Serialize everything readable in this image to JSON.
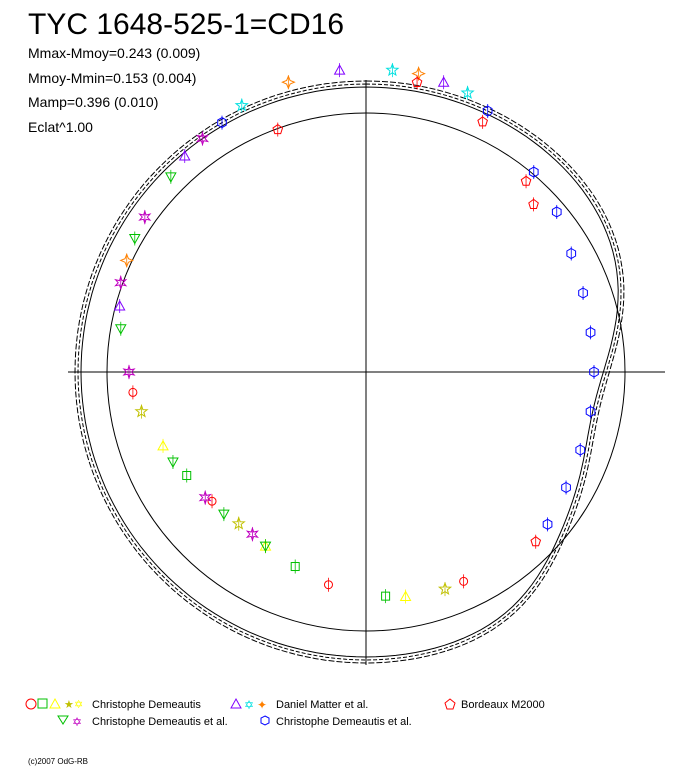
{
  "chart_data": {
    "type": "scatter",
    "plot": "polar light curve (phase as angle, magnitude as radius)",
    "title": "TYC 1648-525-1=CD16",
    "stats": [
      "Mmax-Mmoy=0.243 (0.009)",
      "Mmoy-Mmin=0.153 (0.004)",
      "Mamp=0.396 (0.010)",
      "Eclat^1.00"
    ],
    "mean_circle_magnitude_offset": 0.0,
    "series": [
      {
        "name": "Christophe Demeautis",
        "symbols": [
          "circle",
          "square",
          "triangle",
          "star"
        ],
        "colors": [
          "#ff0000",
          "#00c000",
          "#ffff00",
          "#c0c000"
        ],
        "points": [
          [
            -170,
            0.17
          ],
          [
            -160,
            0.2
          ],
          [
            -150,
            0.22
          ],
          [
            -140,
            0.23
          ],
          [
            -130,
            0.22
          ],
          [
            -120,
            0.2
          ],
          [
            -110,
            0.17
          ],
          [
            -100,
            0.13
          ],
          [
            -95,
            0.11
          ],
          [
            -185,
            0.14
          ],
          [
            -190,
            0.13
          ],
          [
            -200,
            0.12
          ],
          [
            -205,
            0.12
          ]
        ]
      },
      {
        "name": "Christophe Demeautis et al.",
        "symbols": [
          "triangle-down",
          "star6"
        ],
        "colors": [
          "#00c000",
          "#c000c0"
        ],
        "points": [
          [
            -150,
            0.22
          ],
          [
            -145,
            0.23
          ],
          [
            -135,
            0.22
          ],
          [
            -128,
            0.21
          ],
          [
            -115,
            0.18
          ],
          [
            -90,
            0.1
          ],
          [
            -80,
            0.06
          ],
          [
            -70,
            0.02
          ],
          [
            -60,
            0.0
          ],
          [
            -55,
            -0.01
          ],
          [
            -45,
            -0.03
          ],
          [
            -35,
            -0.06
          ]
        ]
      },
      {
        "name": "Daniel Matter et al.",
        "symbols": [
          "triangle",
          "star",
          "cross-star"
        ],
        "colors": [
          "#8000ff",
          "#00e0e0",
          "#ff8000"
        ],
        "points": [
          [
            -40,
            -0.05
          ],
          [
            -25,
            -0.09
          ],
          [
            -15,
            -0.11
          ],
          [
            -5,
            -0.12
          ],
          [
            5,
            -0.12
          ],
          [
            10,
            -0.12
          ],
          [
            15,
            -0.11
          ],
          [
            20,
            -0.1
          ],
          [
            -65,
            0.01
          ],
          [
            -75,
            0.04
          ]
        ]
      },
      {
        "name": "Christophe Demeautis et al.",
        "symbols": [
          "hexagon"
        ],
        "colors": [
          "#0000ff"
        ],
        "points": [
          [
            -30,
            -0.07
          ],
          [
            25,
            -0.07
          ],
          [
            40,
            0.02
          ],
          [
            50,
            0.06
          ],
          [
            60,
            0.1
          ],
          [
            70,
            0.12
          ],
          [
            80,
            0.13
          ],
          [
            90,
            0.13
          ],
          [
            100,
            0.13
          ],
          [
            110,
            0.13
          ],
          [
            120,
            0.12
          ],
          [
            130,
            0.1
          ]
        ]
      },
      {
        "name": "Bordeaux M2000",
        "symbols": [
          "pentagon"
        ],
        "colors": [
          "#ff0000"
        ],
        "points": [
          [
            -20,
            0.03
          ],
          [
            10,
            -0.09
          ],
          [
            25,
            -0.03
          ],
          [
            40,
            0.06
          ],
          [
            45,
            0.1
          ],
          [
            135,
            0.09
          ]
        ]
      }
    ],
    "legend": {
      "placement": "bottom"
    }
  },
  "footer": "(c)2007 OdG-RB",
  "colors": {
    "axis": "#000000",
    "background": "#ffffff"
  }
}
